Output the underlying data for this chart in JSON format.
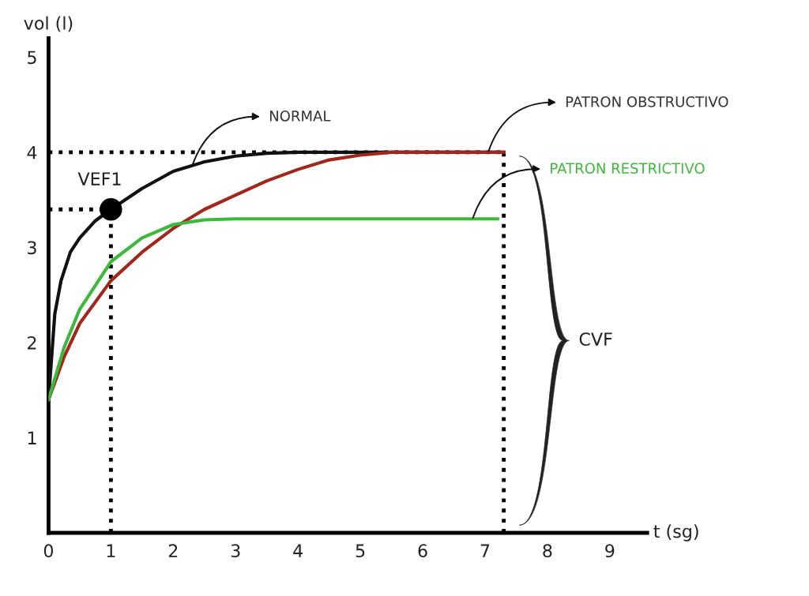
{
  "chart_data": {
    "type": "line",
    "xlabel": "t (sg)",
    "ylabel": "vol (l)",
    "xlim": [
      0,
      9.6
    ],
    "ylim": [
      0,
      5.2
    ],
    "xticks": [
      0,
      1,
      2,
      3,
      4,
      5,
      6,
      7,
      8,
      9
    ],
    "yticks": [
      1,
      2,
      3,
      4,
      5
    ],
    "grid": false,
    "line_style": "solid",
    "series": [
      {
        "color": "#111111",
        "x": [
          0,
          0.1,
          0.2,
          0.35,
          0.5,
          0.75,
          1,
          1.5,
          2,
          2.5,
          3,
          3.5,
          4,
          5,
          6,
          7.3
        ],
        "values": [
          1.4,
          2.3,
          2.65,
          2.95,
          3.1,
          3.28,
          3.4,
          3.62,
          3.8,
          3.9,
          3.96,
          3.99,
          4.0,
          4.0,
          4.0,
          4.0
        ]
      },
      {
        "color": "#a3261c",
        "x": [
          0,
          0.25,
          0.5,
          1,
          1.5,
          2,
          2.5,
          3,
          3.5,
          4,
          4.5,
          5,
          5.5,
          6,
          7.3
        ],
        "values": [
          1.4,
          1.85,
          2.2,
          2.65,
          2.95,
          3.2,
          3.4,
          3.55,
          3.7,
          3.82,
          3.92,
          3.97,
          4.0,
          4.0,
          4.0
        ]
      },
      {
        "color": "#3cb83c",
        "x": [
          0,
          0.25,
          0.5,
          1,
          1.5,
          2,
          2.5,
          3,
          4,
          5,
          6,
          7.2
        ],
        "values": [
          1.4,
          1.95,
          2.35,
          2.85,
          3.1,
          3.24,
          3.29,
          3.3,
          3.3,
          3.3,
          3.3,
          3.3
        ]
      },
      {
        "type": "scatter",
        "name": "VEF1",
        "marker": "circle",
        "color": "#000000",
        "x": [
          1
        ],
        "values": [
          3.4
        ]
      }
    ],
    "ref_lines": [
      {
        "axis": "y",
        "value": 4.0,
        "line_style": "dotted",
        "color": "#000000"
      },
      {
        "axis": "y",
        "value": 3.4,
        "line_style": "dotted",
        "color": "#000000"
      },
      {
        "axis": "x",
        "value": 1,
        "line_style": "dotted",
        "color": "#000000"
      },
      {
        "axis": "x",
        "value": 7.3,
        "line_style": "dotted",
        "color": "#000000"
      }
    ],
    "annotations": [
      {
        "text": "NORMAL",
        "x": 2.3,
        "y": 3.85
      },
      {
        "text": "PATRON OBSTRUCTIVO",
        "x": 7.05,
        "y": 4.0
      },
      {
        "text": "PATRON RESTRICTIVO",
        "x": 6.8,
        "y": 3.3
      },
      "CVF"
    ]
  }
}
